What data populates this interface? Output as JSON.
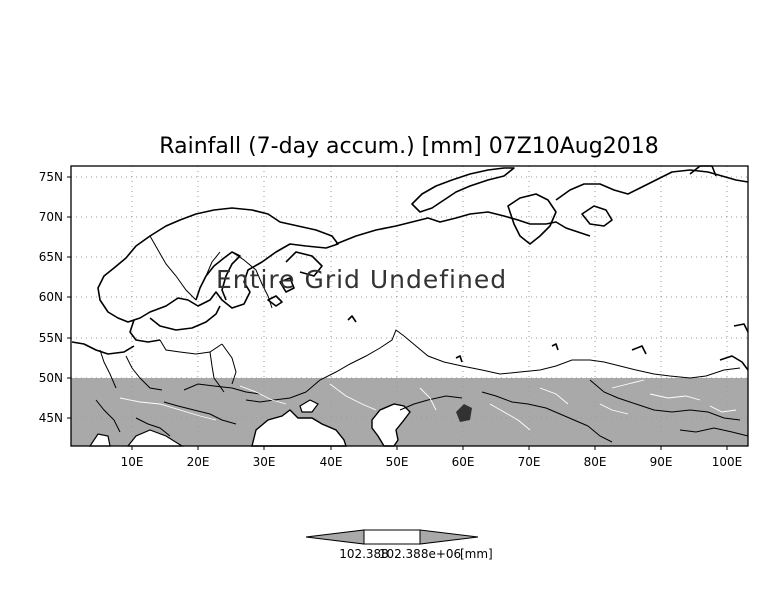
{
  "title": "Rainfall (7-day accum.) [mm] 07Z10Aug2018",
  "overlay_text": "Entire Grid Undefined",
  "axes": {
    "x_ticks": [
      "10E",
      "20E",
      "30E",
      "40E",
      "50E",
      "60E",
      "70E",
      "80E",
      "90E",
      "100E"
    ],
    "y_ticks": [
      "75N",
      "70N",
      "65N",
      "60N",
      "55N",
      "50N",
      "45N"
    ]
  },
  "map": {
    "lon_range": [
      0,
      102
    ],
    "lat_range": [
      41,
      76
    ],
    "grid": true,
    "undefined_fill_color": "#a9a9a9",
    "undefined_region": "south of 50N"
  },
  "colorbar": {
    "min_label": "102.388",
    "max_label": "102.388e+06",
    "unit": "[mm]",
    "fill_color": "#a9a9a9"
  }
}
